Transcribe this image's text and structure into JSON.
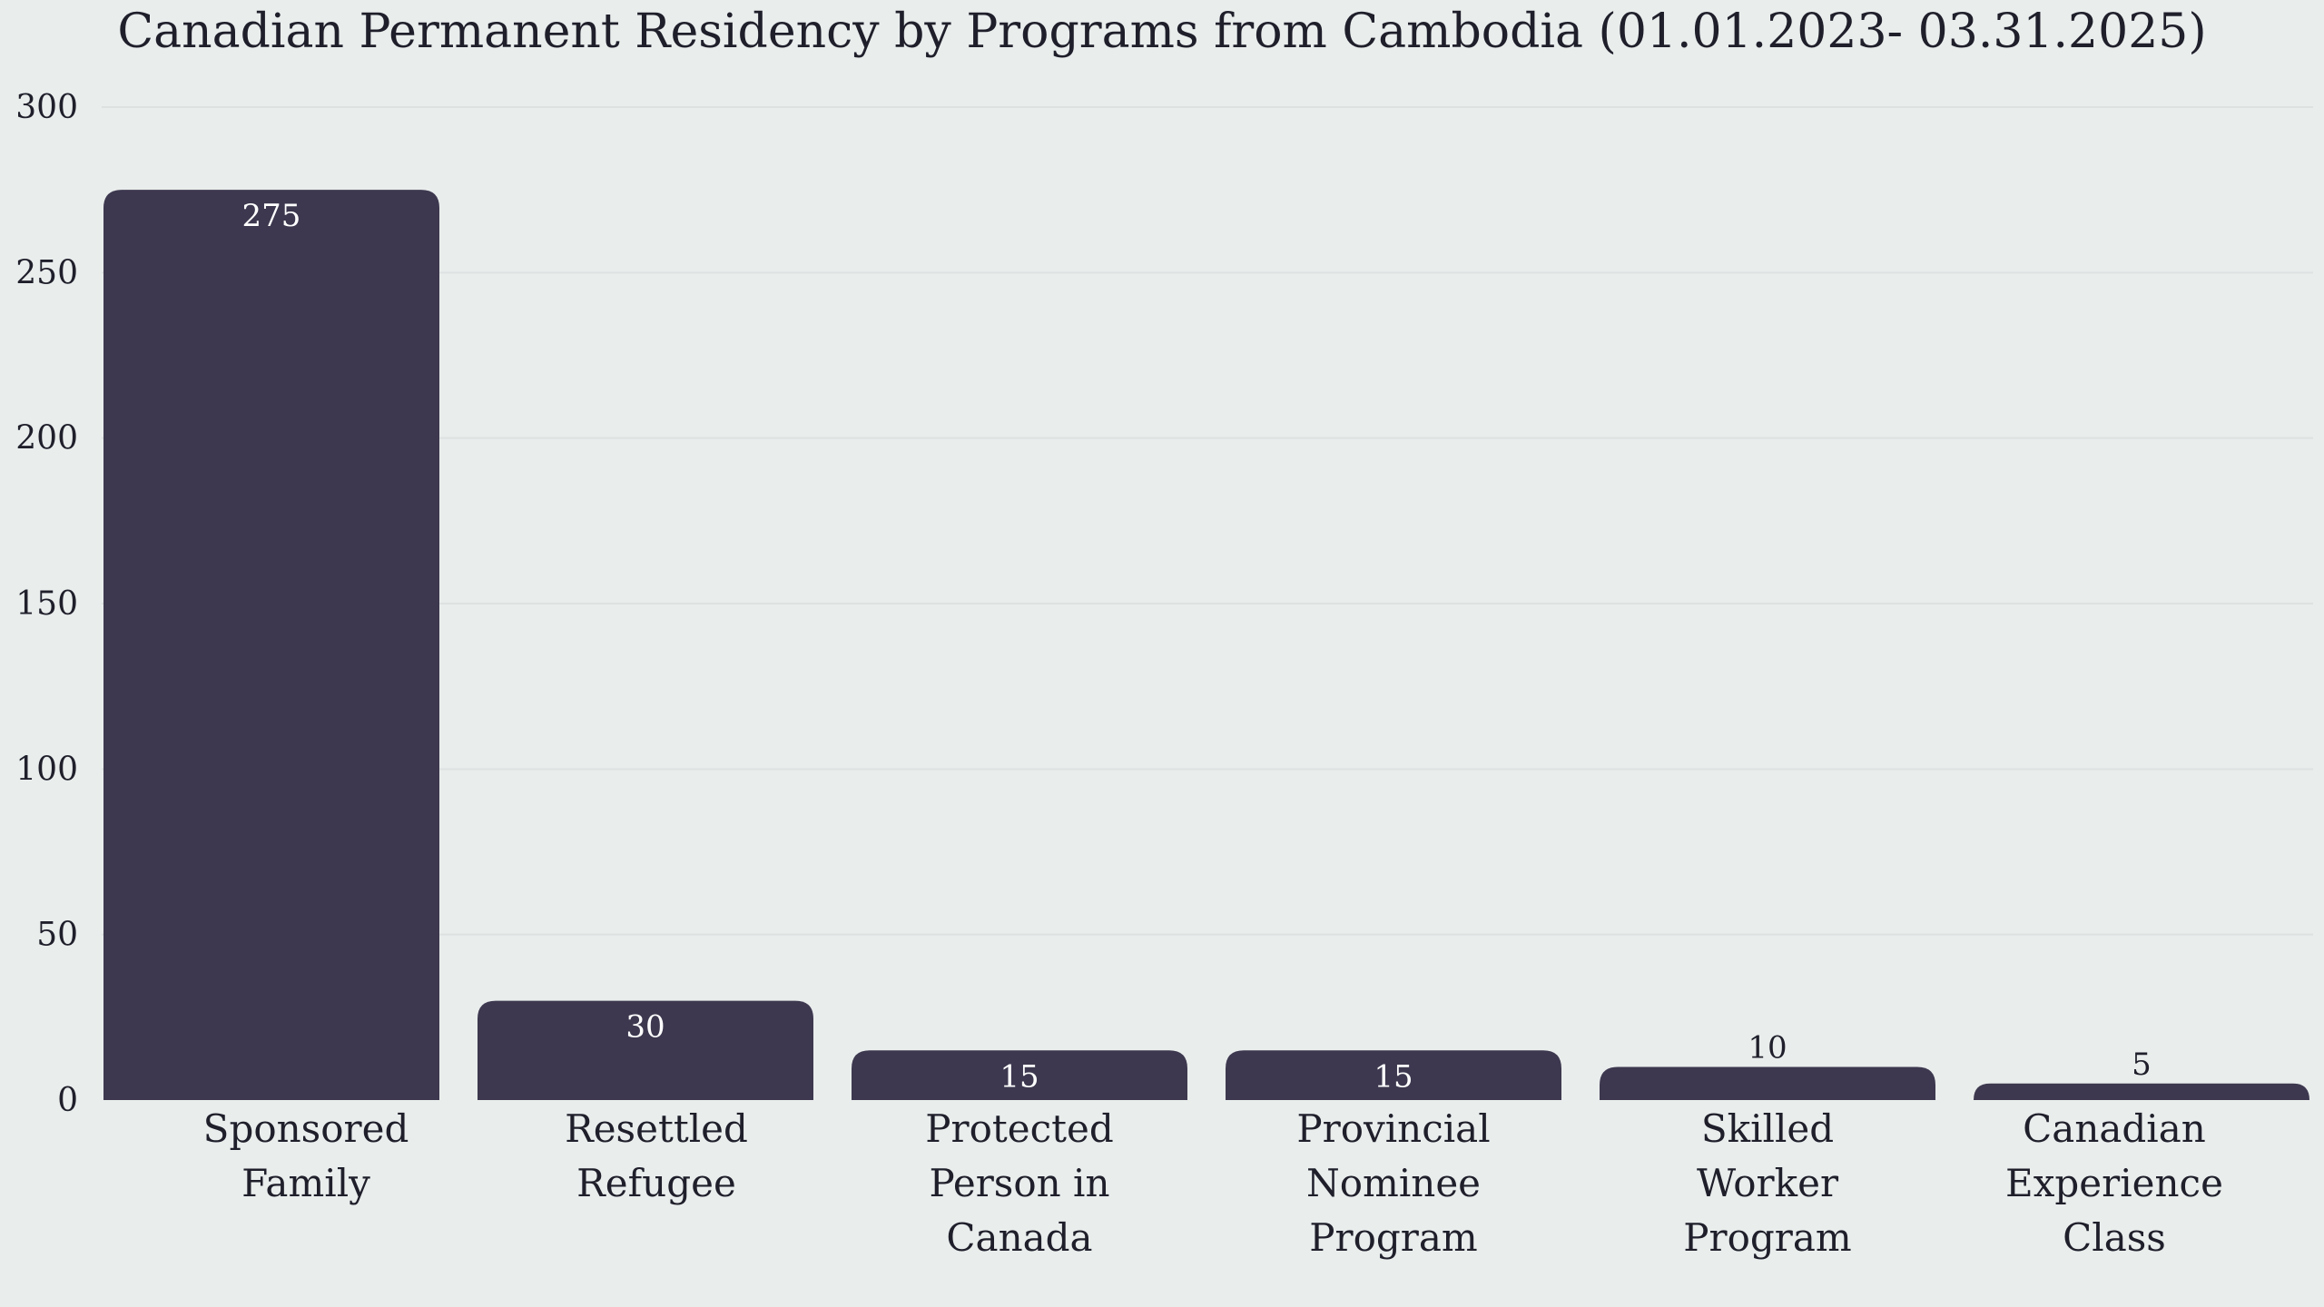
{
  "chart_data": {
    "type": "bar",
    "title": "Canadian Permanent Residency by Programs from Cambodia (01.01.2023- 03.31.2025)",
    "categories": [
      [
        "Sponsored",
        "Family"
      ],
      [
        "Resettled",
        "Refugee"
      ],
      [
        "Protected",
        "Person in",
        "Canada"
      ],
      [
        "Provincial",
        "Nominee",
        "Program"
      ],
      [
        "Skilled",
        "Worker",
        "Program"
      ],
      [
        "Canadian",
        "Experience",
        "Class"
      ]
    ],
    "values": [
      275,
      30,
      15,
      15,
      10,
      5
    ],
    "ylim": [
      0,
      300
    ],
    "yticks": [
      0,
      50,
      100,
      150,
      200,
      250,
      300
    ],
    "xlabel": "",
    "ylabel": "",
    "grid": true,
    "legend": "none",
    "bar_color": "#3d384f",
    "background_color": "#e9edec"
  }
}
